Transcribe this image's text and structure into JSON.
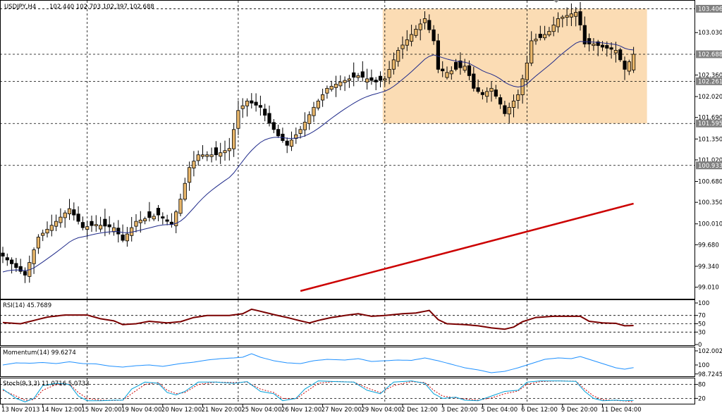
{
  "chart_window": {
    "symbol_label": "USDJPY,H4",
    "ohlc_readout": "102.440 102.703 102.397 102.688"
  },
  "chart_data": [
    {
      "type": "candlestick",
      "panel": "price",
      "symbol": "USDJPY",
      "timeframe": "H4",
      "ylim": [
        98.85,
        103.5
      ],
      "y_ticks": [
        "103.030",
        "102.360",
        "102.020",
        "101.690",
        "101.350",
        "101.020",
        "100.680",
        "100.350",
        "100.010",
        "99.680",
        "99.340",
        "99.010"
      ],
      "y_tick_values": [
        103.03,
        102.36,
        102.02,
        101.69,
        101.35,
        101.02,
        100.68,
        100.35,
        100.01,
        99.68,
        99.34,
        99.01
      ],
      "price_tags": [
        {
          "label": "103.406",
          "value": 103.406
        },
        {
          "label": "102.688",
          "value": 102.688
        },
        {
          "label": "102.261",
          "value": 102.261
        },
        {
          "label": "101.595",
          "value": 101.595
        },
        {
          "label": "100.933",
          "value": 100.933
        }
      ],
      "horizontal_lines": [
        103.406,
        102.688,
        102.261,
        101.595,
        100.933
      ],
      "highlight_zone": {
        "from_bar": 86,
        "to_bar": 142,
        "low": 101.595,
        "high": 103.406,
        "color": "#fbdcb4"
      },
      "colors": {
        "up_body": "#e8b66a",
        "down_body": "#000000",
        "ma_fast": "#1f2a8a",
        "ma_slow": "#cc0000"
      },
      "vertical_grid_bars": [
        19,
        53,
        86,
        118
      ],
      "x_labels": [
        {
          "bar": 0,
          "text": "13 Nov 2013"
        },
        {
          "bar": 9,
          "text": "14 Nov 12:00"
        },
        {
          "bar": 18,
          "text": "15 Nov 20:00"
        },
        {
          "bar": 27,
          "text": "19 Nov 04:00"
        },
        {
          "bar": 36,
          "text": "20 Nov 12:00"
        },
        {
          "bar": 45,
          "text": "21 Nov 20:00"
        },
        {
          "bar": 54,
          "text": "25 Nov 04:00"
        },
        {
          "bar": 63,
          "text": "26 Nov 12:00"
        },
        {
          "bar": 72,
          "text": "27 Nov 20:00"
        },
        {
          "bar": 81,
          "text": "29 Nov 04:00"
        },
        {
          "bar": 90,
          "text": "2 Dec 12:00"
        },
        {
          "bar": 99,
          "text": "3 Dec 20:00"
        },
        {
          "bar": 108,
          "text": "5 Dec 04:00"
        },
        {
          "bar": 117,
          "text": "6 Dec 12:00"
        },
        {
          "bar": 126,
          "text": "9 Dec 20:00"
        },
        {
          "bar": 135,
          "text": "11 Dec 04:00"
        }
      ],
      "close_anchors": [
        [
          0,
          99.5
        ],
        [
          5,
          99.2
        ],
        [
          8,
          99.8
        ],
        [
          12,
          100.05
        ],
        [
          15,
          100.25
        ],
        [
          18,
          99.95
        ],
        [
          21,
          100.0
        ],
        [
          25,
          99.95
        ],
        [
          27,
          99.75
        ],
        [
          30,
          100.05
        ],
        [
          35,
          100.15
        ],
        [
          38,
          100.0
        ],
        [
          40,
          100.4
        ],
        [
          42,
          100.9
        ],
        [
          44,
          101.1
        ],
        [
          48,
          101.1
        ],
        [
          51,
          101.2
        ],
        [
          53,
          101.8
        ],
        [
          55,
          101.95
        ],
        [
          58,
          101.85
        ],
        [
          60,
          101.6
        ],
        [
          62,
          101.4
        ],
        [
          64,
          101.25
        ],
        [
          67,
          101.5
        ],
        [
          70,
          101.85
        ],
        [
          73,
          102.15
        ],
        [
          76,
          102.25
        ],
        [
          80,
          102.35
        ],
        [
          82,
          102.3
        ],
        [
          84,
          102.25
        ],
        [
          86,
          102.3
        ],
        [
          89,
          102.75
        ],
        [
          92,
          103.0
        ],
        [
          95,
          103.25
        ],
        [
          97,
          102.9
        ],
        [
          98,
          102.45
        ],
        [
          100,
          102.4
        ],
        [
          102,
          102.45
        ],
        [
          104,
          102.5
        ],
        [
          105,
          102.35
        ],
        [
          106,
          102.15
        ],
        [
          108,
          102.05
        ],
        [
          110,
          102.15
        ],
        [
          112,
          101.9
        ],
        [
          113,
          101.75
        ],
        [
          114,
          101.85
        ],
        [
          116,
          102.05
        ],
        [
          117,
          102.3
        ],
        [
          118,
          102.55
        ],
        [
          119,
          102.9
        ],
        [
          121,
          102.95
        ],
        [
          123,
          103.05
        ],
        [
          125,
          103.25
        ],
        [
          127,
          103.3
        ],
        [
          129,
          103.35
        ],
        [
          130,
          103.15
        ],
        [
          131,
          102.85
        ],
        [
          133,
          102.85
        ],
        [
          135,
          102.8
        ],
        [
          138,
          102.75
        ],
        [
          140,
          102.45
        ],
        [
          142,
          102.688
        ]
      ],
      "ma_slow_segment": {
        "from_bar": 67,
        "from_value": 98.95,
        "to_bar": 142,
        "to_value": 100.33
      }
    },
    {
      "type": "line",
      "panel": "indicator",
      "name": "RSI(14)",
      "label": "RSI(14) 45.7689",
      "ylim": [
        0,
        100
      ],
      "y_ticks": [
        "100",
        "70",
        "50",
        "30",
        "0"
      ],
      "levels": [
        70,
        50,
        30
      ],
      "color": "#7a0000",
      "anchors": [
        [
          0,
          53
        ],
        [
          4,
          50
        ],
        [
          7,
          58
        ],
        [
          10,
          66
        ],
        [
          14,
          71
        ],
        [
          19,
          71
        ],
        [
          22,
          62
        ],
        [
          25,
          57
        ],
        [
          27,
          48
        ],
        [
          30,
          50
        ],
        [
          33,
          56
        ],
        [
          37,
          52
        ],
        [
          40,
          55
        ],
        [
          43,
          65
        ],
        [
          46,
          70
        ],
        [
          51,
          70
        ],
        [
          54,
          74
        ],
        [
          56,
          85
        ],
        [
          58,
          80
        ],
        [
          61,
          72
        ],
        [
          64,
          65
        ],
        [
          67,
          57
        ],
        [
          69,
          52
        ],
        [
          71,
          58
        ],
        [
          74,
          65
        ],
        [
          77,
          70
        ],
        [
          80,
          74
        ],
        [
          83,
          68
        ],
        [
          86,
          70
        ],
        [
          90,
          74
        ],
        [
          93,
          76
        ],
        [
          96,
          82
        ],
        [
          98,
          60
        ],
        [
          100,
          50
        ],
        [
          104,
          48
        ],
        [
          107,
          45
        ],
        [
          110,
          40
        ],
        [
          113,
          37
        ],
        [
          115,
          42
        ],
        [
          117,
          55
        ],
        [
          120,
          65
        ],
        [
          124,
          68
        ],
        [
          130,
          68
        ],
        [
          132,
          56
        ],
        [
          135,
          52
        ],
        [
          138,
          51
        ],
        [
          140,
          45
        ],
        [
          142,
          45.77
        ]
      ]
    },
    {
      "type": "line",
      "panel": "indicator",
      "name": "Momentum(14)",
      "label": "Momentum(14) 99.6274",
      "ylim": [
        98.6,
        102.1
      ],
      "y_ticks": [
        "102.0028",
        "100",
        "98.7245"
      ],
      "color": "#1e90ff",
      "anchors": [
        [
          0,
          100.0
        ],
        [
          3,
          100.3
        ],
        [
          6,
          100.25
        ],
        [
          9,
          100.35
        ],
        [
          12,
          100.2
        ],
        [
          15,
          100.45
        ],
        [
          18,
          100.2
        ],
        [
          21,
          100.15
        ],
        [
          24,
          99.85
        ],
        [
          27,
          99.7
        ],
        [
          30,
          99.9
        ],
        [
          33,
          100.0
        ],
        [
          36,
          99.8
        ],
        [
          40,
          100.2
        ],
        [
          43,
          100.4
        ],
        [
          46,
          100.7
        ],
        [
          49,
          100.9
        ],
        [
          52,
          101.0
        ],
        [
          54,
          101.1
        ],
        [
          56,
          101.6
        ],
        [
          58,
          101.1
        ],
        [
          61,
          100.6
        ],
        [
          64,
          100.3
        ],
        [
          67,
          100.2
        ],
        [
          70,
          100.6
        ],
        [
          73,
          100.8
        ],
        [
          77,
          100.7
        ],
        [
          80,
          100.9
        ],
        [
          83,
          100.5
        ],
        [
          86,
          100.6
        ],
        [
          89,
          100.7
        ],
        [
          92,
          100.65
        ],
        [
          95,
          101.0
        ],
        [
          98,
          100.6
        ],
        [
          101,
          100.1
        ],
        [
          104,
          99.6
        ],
        [
          107,
          99.3
        ],
        [
          110,
          98.9
        ],
        [
          113,
          99.1
        ],
        [
          116,
          99.6
        ],
        [
          119,
          100.2
        ],
        [
          122,
          100.8
        ],
        [
          125,
          101.0
        ],
        [
          128,
          100.9
        ],
        [
          130,
          101.2
        ],
        [
          132,
          100.8
        ],
        [
          135,
          100.2
        ],
        [
          138,
          99.6
        ],
        [
          140,
          99.4
        ],
        [
          142,
          99.63
        ]
      ]
    },
    {
      "type": "line",
      "panel": "indicator",
      "name": "Stoch(9,3,3)",
      "label": "Stoch(9,3,3) 11.0716 5.0733",
      "ylim": [
        0,
        100
      ],
      "y_ticks": [
        "80",
        "20"
      ],
      "levels": [
        80,
        20
      ],
      "series": [
        {
          "name": "main",
          "color": "#00a0d8",
          "anchors": [
            [
              0,
              60
            ],
            [
              3,
              20
            ],
            [
              5,
              5
            ],
            [
              7,
              20
            ],
            [
              9,
              75
            ],
            [
              12,
              85
            ],
            [
              15,
              80
            ],
            [
              17,
              30
            ],
            [
              19,
              10
            ],
            [
              22,
              10
            ],
            [
              25,
              12
            ],
            [
              27,
              12
            ],
            [
              29,
              60
            ],
            [
              32,
              90
            ],
            [
              35,
              85
            ],
            [
              37,
              45
            ],
            [
              39,
              35
            ],
            [
              41,
              50
            ],
            [
              44,
              90
            ],
            [
              48,
              90
            ],
            [
              52,
              85
            ],
            [
              55,
              92
            ],
            [
              58,
              50
            ],
            [
              61,
              40
            ],
            [
              63,
              10
            ],
            [
              66,
              20
            ],
            [
              68,
              60
            ],
            [
              71,
              95
            ],
            [
              75,
              92
            ],
            [
              79,
              90
            ],
            [
              82,
              55
            ],
            [
              85,
              40
            ],
            [
              88,
              90
            ],
            [
              92,
              95
            ],
            [
              95,
              85
            ],
            [
              97,
              40
            ],
            [
              99,
              20
            ],
            [
              102,
              25
            ],
            [
              104,
              12
            ],
            [
              107,
              10
            ],
            [
              110,
              30
            ],
            [
              113,
              50
            ],
            [
              116,
              55
            ],
            [
              118,
              90
            ],
            [
              121,
              95
            ],
            [
              125,
              95
            ],
            [
              129,
              93
            ],
            [
              131,
              50
            ],
            [
              133,
              20
            ],
            [
              135,
              10
            ],
            [
              138,
              12
            ],
            [
              140,
              10
            ],
            [
              142,
              11.07
            ]
          ]
        },
        {
          "name": "signal",
          "color": "#cc0000",
          "anchors": [
            [
              0,
              55
            ],
            [
              3,
              30
            ],
            [
              5,
              12
            ],
            [
              7,
              15
            ],
            [
              9,
              55
            ],
            [
              12,
              80
            ],
            [
              15,
              82
            ],
            [
              17,
              45
            ],
            [
              19,
              20
            ],
            [
              22,
              12
            ],
            [
              25,
              11
            ],
            [
              27,
              12
            ],
            [
              29,
              40
            ],
            [
              32,
              80
            ],
            [
              35,
              88
            ],
            [
              37,
              55
            ],
            [
              39,
              40
            ],
            [
              41,
              45
            ],
            [
              44,
              80
            ],
            [
              48,
              90
            ],
            [
              52,
              88
            ],
            [
              55,
              90
            ],
            [
              58,
              60
            ],
            [
              61,
              45
            ],
            [
              63,
              20
            ],
            [
              66,
              18
            ],
            [
              68,
              45
            ],
            [
              71,
              85
            ],
            [
              75,
              93
            ],
            [
              79,
              90
            ],
            [
              82,
              65
            ],
            [
              85,
              45
            ],
            [
              88,
              75
            ],
            [
              92,
              92
            ],
            [
              95,
              88
            ],
            [
              97,
              55
            ],
            [
              99,
              30
            ],
            [
              102,
              22
            ],
            [
              104,
              18
            ],
            [
              107,
              12
            ],
            [
              110,
              22
            ],
            [
              113,
              40
            ],
            [
              116,
              52
            ],
            [
              118,
              80
            ],
            [
              121,
              92
            ],
            [
              125,
              95
            ],
            [
              129,
              94
            ],
            [
              131,
              60
            ],
            [
              133,
              30
            ],
            [
              135,
              14
            ],
            [
              138,
              11
            ],
            [
              140,
              9
            ],
            [
              142,
              5.07
            ]
          ]
        }
      ]
    }
  ]
}
